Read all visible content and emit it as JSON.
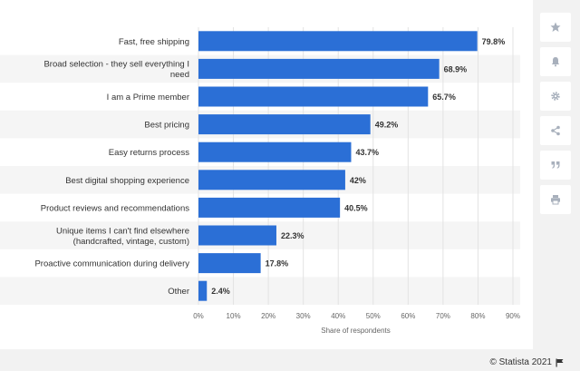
{
  "chart_data": {
    "type": "bar",
    "orientation": "horizontal",
    "categories": [
      [
        "Fast, free shipping"
      ],
      [
        "Broad selection - they sell everything I",
        "need"
      ],
      [
        "I am a Prime member"
      ],
      [
        "Best pricing"
      ],
      [
        "Easy returns process"
      ],
      [
        "Best digital shopping experience"
      ],
      [
        "Product reviews and recommendations"
      ],
      [
        "Unique items I can't find elsewhere",
        "(handcrafted, vintage, custom)"
      ],
      [
        "Proactive communication during delivery"
      ],
      [
        "Other"
      ]
    ],
    "values": [
      79.8,
      68.9,
      65.7,
      49.2,
      43.7,
      42,
      40.5,
      22.3,
      17.8,
      2.4
    ],
    "value_labels": [
      "79.8%",
      "68.9%",
      "65.7%",
      "49.2%",
      "43.7%",
      "42%",
      "40.5%",
      "22.3%",
      "17.8%",
      "2.4%"
    ],
    "xlim": [
      0,
      90
    ],
    "xticks": [
      0,
      10,
      20,
      30,
      40,
      50,
      60,
      70,
      80,
      90
    ],
    "xtick_labels": [
      "0%",
      "10%",
      "20%",
      "30%",
      "40%",
      "50%",
      "60%",
      "70%",
      "80%",
      "90%"
    ],
    "xlabel": "Share of respondents",
    "ylabel": "",
    "title": "",
    "bar_color": "#2b6fd6",
    "alt_row_color": "#f5f5f5",
    "grid": true,
    "legend": false
  },
  "sidebar": {
    "icons": [
      "star-icon",
      "bell-icon",
      "gear-icon",
      "share-icon",
      "quote-icon",
      "print-icon"
    ],
    "icon_color": "#a8b0bc"
  },
  "credit": {
    "text": "© Statista 2021"
  }
}
